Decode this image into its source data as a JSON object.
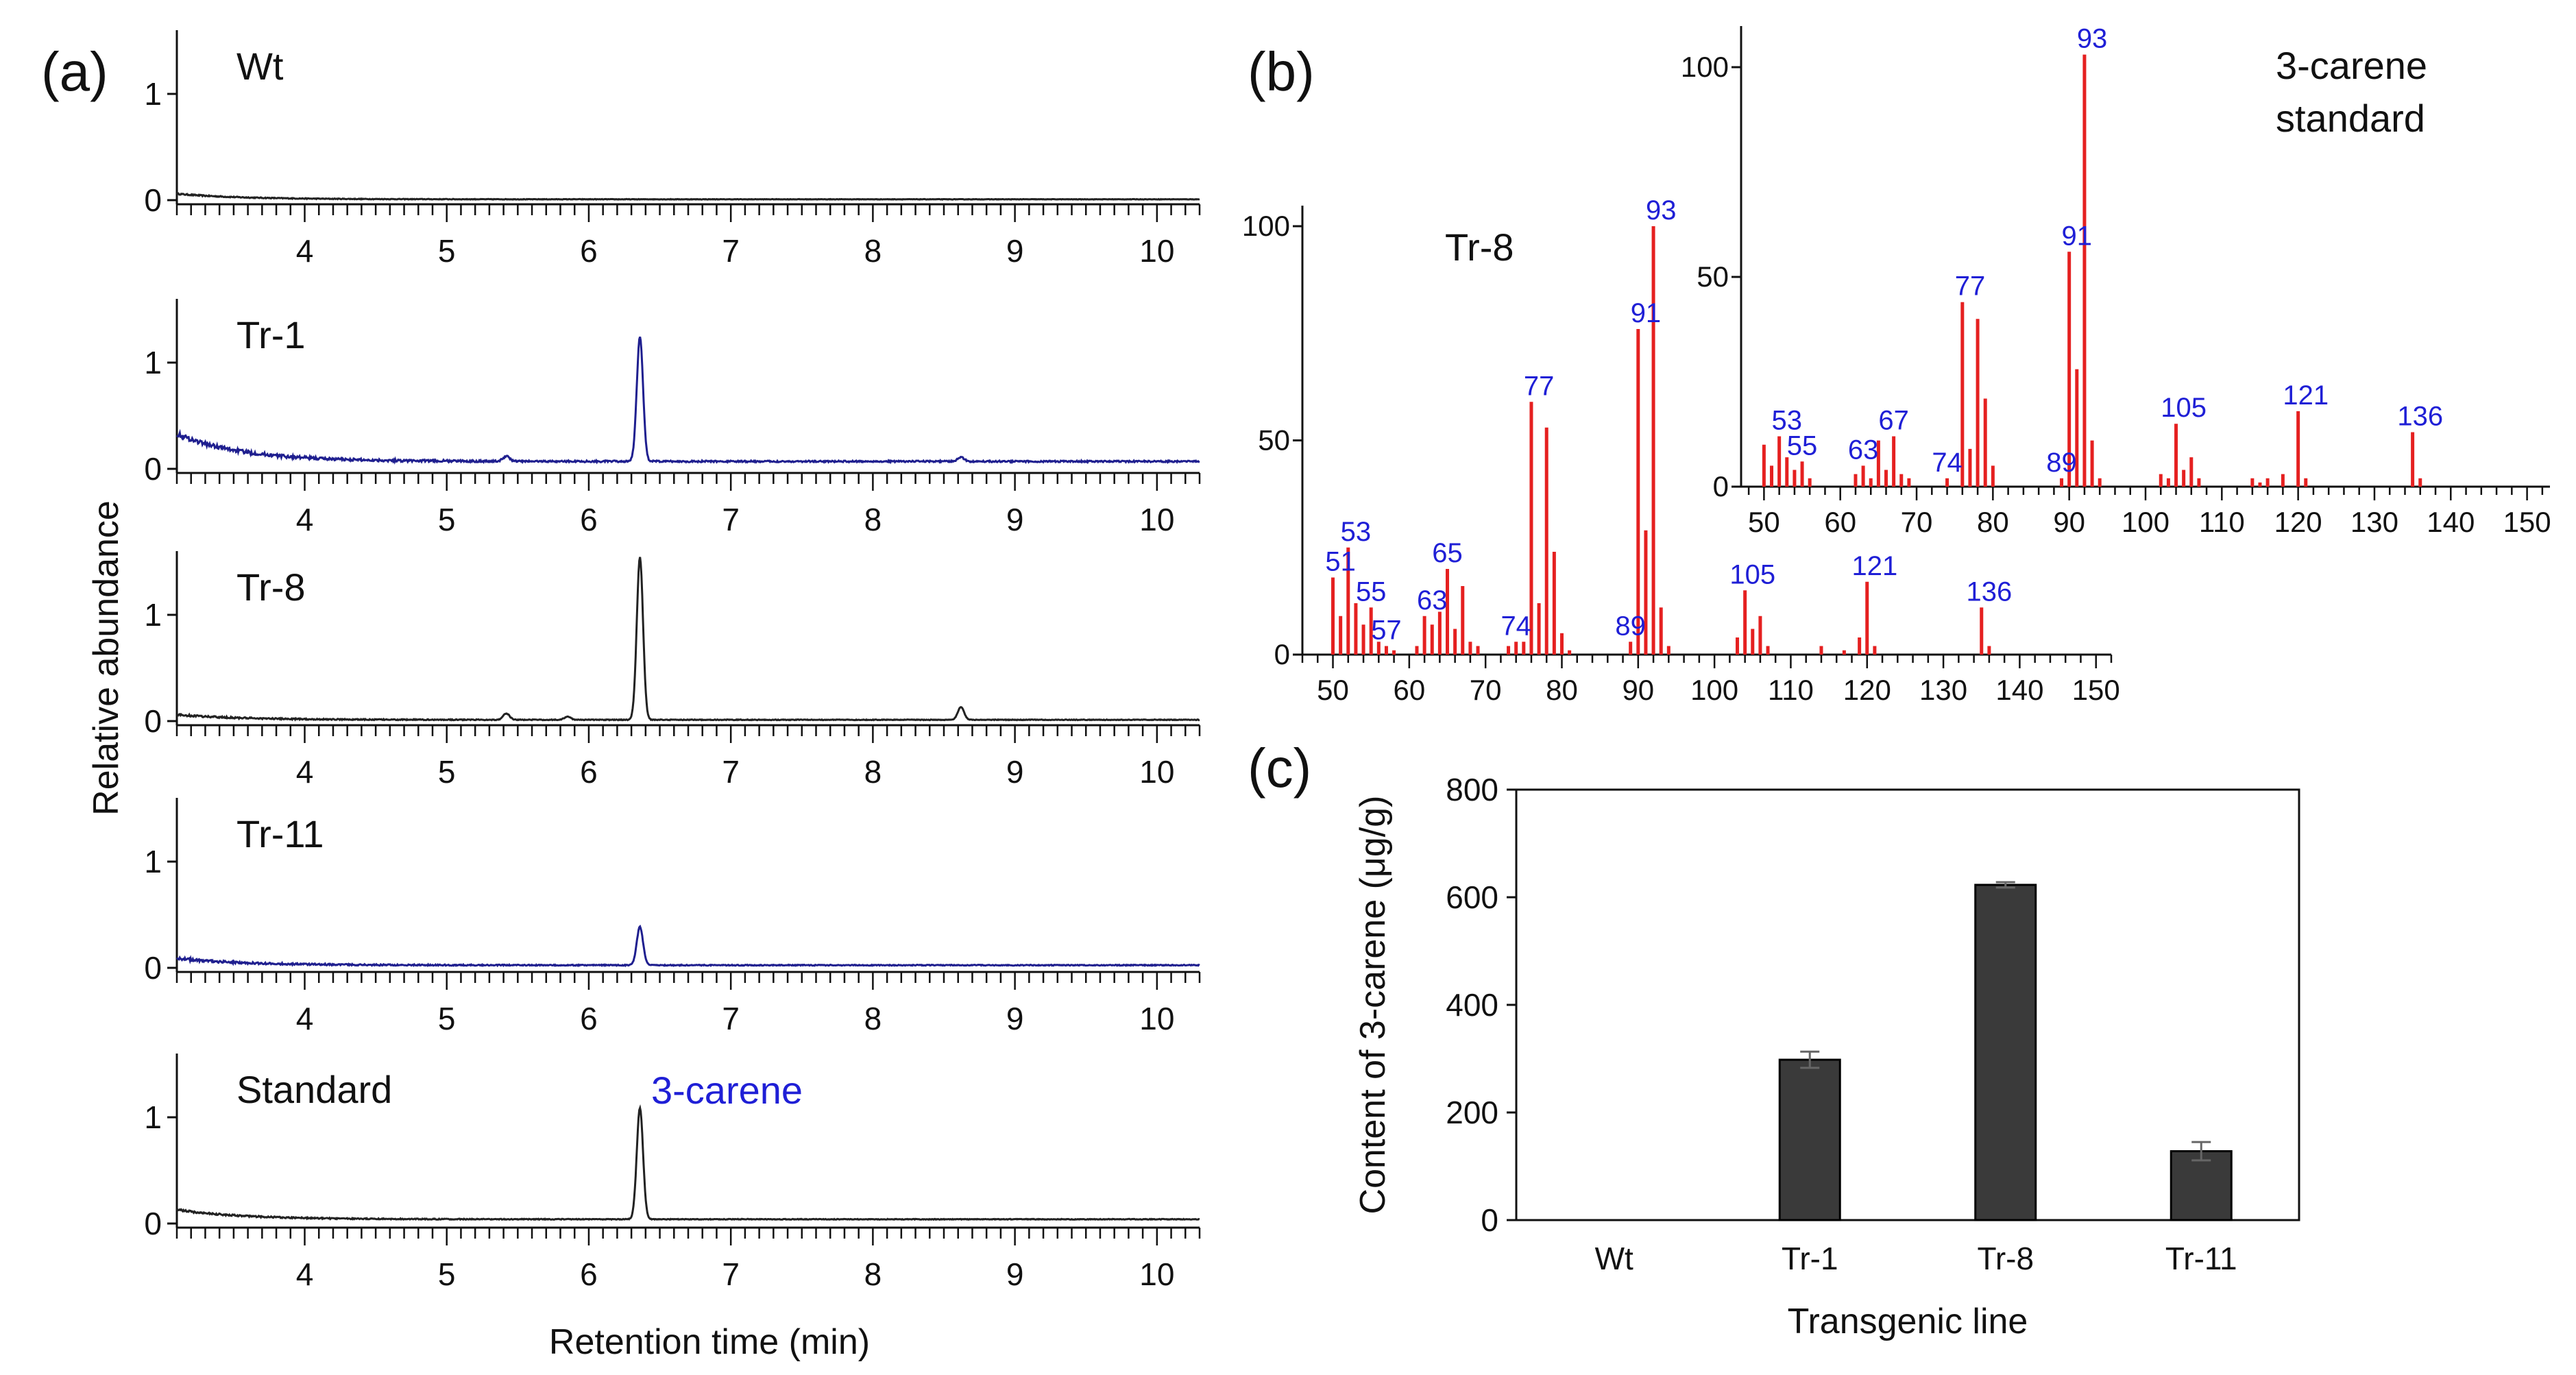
{
  "chart_data": [
    {
      "id": "a",
      "type": "line",
      "panel_label": "(a)",
      "xlabel": "Retention time (min)",
      "ylabel": "Relative abundance",
      "xlim": [
        3.1,
        10.3
      ],
      "ylim": [
        0,
        1.6
      ],
      "xticks": [
        4,
        5,
        6,
        7,
        8,
        9,
        10
      ],
      "yticks": [
        0,
        1
      ],
      "annotation": {
        "text": "3-carene",
        "color": "#1f1fd6"
      },
      "series": [
        {
          "name": "Wt",
          "color": "#222222",
          "baseline_start": 0.06,
          "baseline_level": 0.008,
          "noise": 0.004,
          "peaks": []
        },
        {
          "name": "Tr-1",
          "color": "#1f1f8f",
          "baseline_start": 0.33,
          "baseline_level": 0.07,
          "noise": 0.014,
          "peaks": [
            {
              "x": 6.36,
              "height": 1.17
            },
            {
              "x": 5.42,
              "height": 0.05
            },
            {
              "x": 8.62,
              "height": 0.04
            }
          ]
        },
        {
          "name": "Tr-8",
          "color": "#222222",
          "baseline_start": 0.06,
          "baseline_level": 0.012,
          "noise": 0.006,
          "peaks": [
            {
              "x": 6.36,
              "height": 1.53
            },
            {
              "x": 5.42,
              "height": 0.06
            },
            {
              "x": 5.85,
              "height": 0.03
            },
            {
              "x": 8.62,
              "height": 0.12
            }
          ]
        },
        {
          "name": "Tr-11",
          "color": "#1f1f8f",
          "baseline_start": 0.09,
          "baseline_level": 0.025,
          "noise": 0.008,
          "peaks": [
            {
              "x": 6.36,
              "height": 0.36
            }
          ]
        },
        {
          "name": "Standard",
          "color": "#222222",
          "baseline_start": 0.13,
          "baseline_level": 0.04,
          "noise": 0.006,
          "peaks": [
            {
              "x": 6.36,
              "height": 1.05
            }
          ]
        }
      ]
    },
    {
      "id": "b-tr8",
      "type": "bar",
      "panel_label": "(b)",
      "title": "Tr-8",
      "xlim": [
        46,
        152
      ],
      "ylim": [
        0,
        105
      ],
      "xticks": [
        50,
        60,
        70,
        80,
        90,
        100,
        110,
        120,
        130,
        140,
        150
      ],
      "yticks": [
        0,
        50,
        100
      ],
      "color": "#e52020",
      "peaks": [
        [
          50,
          18
        ],
        [
          51,
          9
        ],
        [
          52,
          25
        ],
        [
          53,
          12
        ],
        [
          54,
          7
        ],
        [
          55,
          11
        ],
        [
          56,
          3
        ],
        [
          57,
          2
        ],
        [
          58,
          1
        ],
        [
          61,
          2
        ],
        [
          62,
          9
        ],
        [
          63,
          7
        ],
        [
          64,
          10
        ],
        [
          65,
          20
        ],
        [
          66,
          6
        ],
        [
          67,
          16
        ],
        [
          68,
          3
        ],
        [
          69,
          2
        ],
        [
          73,
          2
        ],
        [
          74,
          3
        ],
        [
          75,
          3
        ],
        [
          76,
          59
        ],
        [
          77,
          12
        ],
        [
          78,
          53
        ],
        [
          79,
          24
        ],
        [
          80,
          5
        ],
        [
          81,
          1
        ],
        [
          89,
          3
        ],
        [
          90,
          76
        ],
        [
          91,
          29
        ],
        [
          92,
          100
        ],
        [
          93,
          11
        ],
        [
          94,
          2
        ],
        [
          103,
          4
        ],
        [
          104,
          15
        ],
        [
          105,
          6
        ],
        [
          106,
          9
        ],
        [
          107,
          2
        ],
        [
          114,
          2
        ],
        [
          117,
          1
        ],
        [
          119,
          4
        ],
        [
          120,
          17
        ],
        [
          121,
          2
        ],
        [
          135,
          11
        ],
        [
          136,
          2
        ]
      ],
      "labels": [
        [
          51,
          18,
          "51"
        ],
        [
          53,
          25,
          "53"
        ],
        [
          55,
          11,
          "55"
        ],
        [
          57,
          2,
          "57"
        ],
        [
          63,
          9,
          "63"
        ],
        [
          65,
          20,
          "65"
        ],
        [
          74,
          3,
          "74"
        ],
        [
          77,
          59,
          "77"
        ],
        [
          89,
          3,
          "89"
        ],
        [
          91,
          76,
          "91"
        ],
        [
          93,
          100,
          "93"
        ],
        [
          105,
          15,
          "105"
        ],
        [
          121,
          17,
          "121"
        ],
        [
          136,
          11,
          "136"
        ]
      ]
    },
    {
      "id": "b-standard",
      "type": "bar",
      "title": "3-carene standard",
      "title_lines": [
        "3-carene",
        "standard"
      ],
      "xlim": [
        47,
        153
      ],
      "ylim": [
        0,
        108
      ],
      "xticks": [
        50,
        60,
        70,
        80,
        90,
        100,
        110,
        120,
        130,
        140,
        150
      ],
      "yticks": [
        0,
        50,
        100
      ],
      "color": "#e52020",
      "peaks": [
        [
          50,
          10
        ],
        [
          51,
          5
        ],
        [
          52,
          12
        ],
        [
          53,
          7
        ],
        [
          54,
          4
        ],
        [
          55,
          6
        ],
        [
          56,
          2
        ],
        [
          62,
          3
        ],
        [
          63,
          5
        ],
        [
          64,
          2
        ],
        [
          65,
          11
        ],
        [
          66,
          4
        ],
        [
          67,
          12
        ],
        [
          68,
          3
        ],
        [
          69,
          2
        ],
        [
          74,
          2
        ],
        [
          76,
          44
        ],
        [
          77,
          9
        ],
        [
          78,
          40
        ],
        [
          79,
          21
        ],
        [
          80,
          5
        ],
        [
          89,
          2
        ],
        [
          90,
          56
        ],
        [
          91,
          28
        ],
        [
          92,
          103
        ],
        [
          93,
          11
        ],
        [
          94,
          2
        ],
        [
          102,
          3
        ],
        [
          103,
          2
        ],
        [
          104,
          15
        ],
        [
          105,
          4
        ],
        [
          106,
          7
        ],
        [
          107,
          2
        ],
        [
          114,
          2
        ],
        [
          115,
          1
        ],
        [
          116,
          2
        ],
        [
          118,
          3
        ],
        [
          120,
          18
        ],
        [
          121,
          2
        ],
        [
          135,
          13
        ],
        [
          136,
          2
        ]
      ],
      "labels": [
        [
          53,
          12,
          "53"
        ],
        [
          55,
          6,
          "55"
        ],
        [
          63,
          5,
          "63"
        ],
        [
          67,
          12,
          "67"
        ],
        [
          74,
          2,
          "74"
        ],
        [
          77,
          44,
          "77"
        ],
        [
          89,
          2,
          "89"
        ],
        [
          91,
          56,
          "91"
        ],
        [
          93,
          103,
          "93"
        ],
        [
          105,
          15,
          "105"
        ],
        [
          121,
          18,
          "121"
        ],
        [
          136,
          13,
          "136"
        ]
      ]
    },
    {
      "id": "c",
      "type": "bar",
      "panel_label": "(c)",
      "xlabel": "Transgenic line",
      "ylabel": "Content of 3-carene (μg/g)",
      "categories": [
        "Wt",
        "Tr-1",
        "Tr-8",
        "Tr-11"
      ],
      "values": [
        0,
        298,
        623,
        128
      ],
      "errors": [
        0,
        15,
        5,
        17
      ],
      "ylim": [
        0,
        800
      ],
      "yticks": [
        0,
        200,
        400,
        600,
        800
      ],
      "color": "#3a3a3a"
    }
  ]
}
